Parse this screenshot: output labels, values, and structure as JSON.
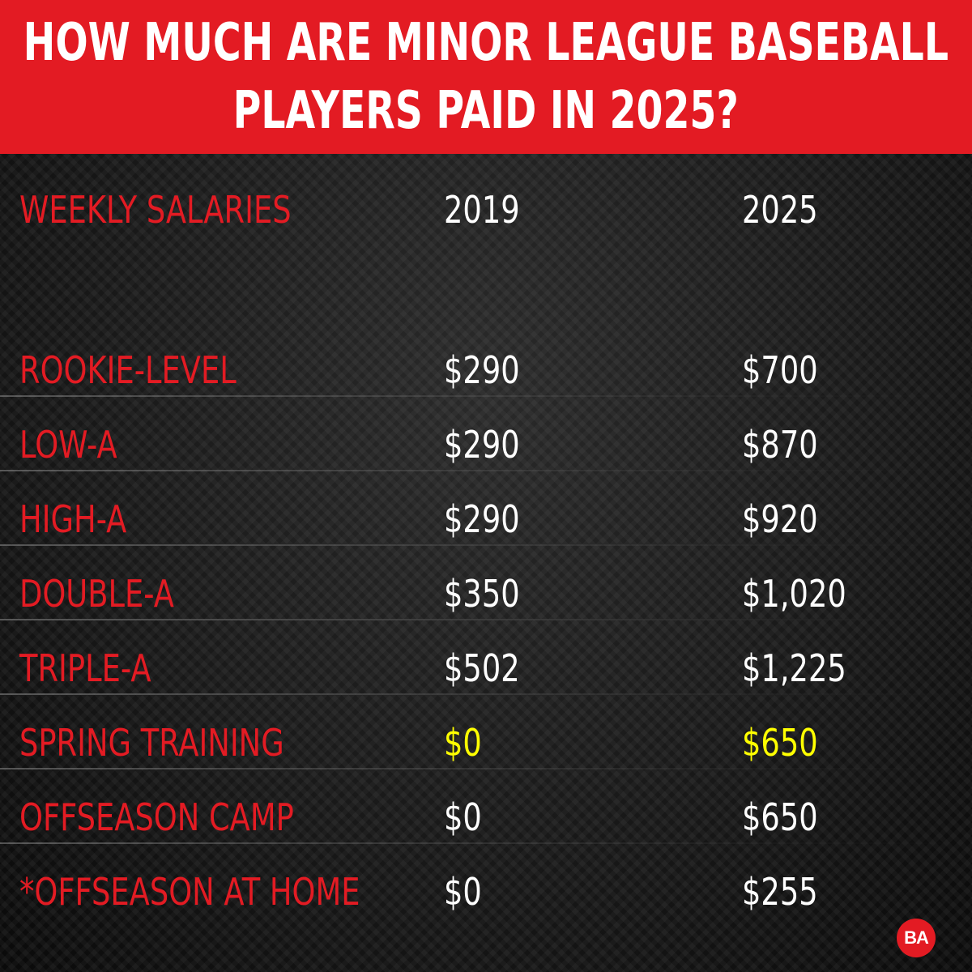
{
  "header": {
    "line1": "HOW MUCH ARE MINOR LEAGUE BASEBALL",
    "line2": "PLAYERS PAID IN 2025?"
  },
  "chart_data": {
    "type": "table",
    "title": "HOW MUCH ARE MINOR LEAGUE BASEBALL PLAYERS PAID IN 2025?",
    "columns": [
      "WEEKLY SALARIES",
      "2019",
      "2025"
    ],
    "rows": [
      {
        "label": "ROOKIE-LEVEL",
        "v2019": "$290",
        "v2025": "$700",
        "highlight": false
      },
      {
        "label": "LOW-A",
        "v2019": "$290",
        "v2025": "$870",
        "highlight": false
      },
      {
        "label": "HIGH-A",
        "v2019": "$290",
        "v2025": "$920",
        "highlight": false
      },
      {
        "label": "DOUBLE-A",
        "v2019": "$350",
        "v2025": "$1,020",
        "highlight": false
      },
      {
        "label": "TRIPLE-A",
        "v2019": "$502",
        "v2025": "$1,225",
        "highlight": false
      },
      {
        "label": "SPRING TRAINING",
        "v2019": "$0",
        "v2025": "$650",
        "highlight": true
      },
      {
        "label": "OFFSEASON CAMP",
        "v2019": "$0",
        "v2025": "$650",
        "highlight": false
      },
      {
        "label": "*OFFSEASON AT HOME",
        "v2019": "$0",
        "v2025": "$255",
        "highlight": false
      }
    ],
    "values_2019": [
      290,
      290,
      290,
      350,
      502,
      0,
      0,
      0
    ],
    "values_2025": [
      700,
      870,
      920,
      1020,
      1225,
      650,
      650,
      255
    ]
  },
  "colors": {
    "accent": "#e31b23",
    "highlight": "#ffff00",
    "text": "#ffffff",
    "background": "#121212"
  },
  "logo": {
    "text": "BA"
  }
}
